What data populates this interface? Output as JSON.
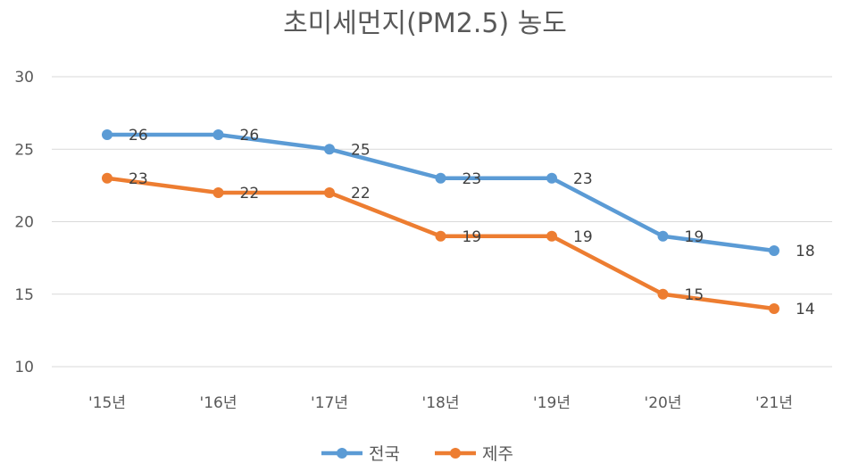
{
  "chart_data": {
    "type": "line",
    "title": "초미세먼지(PM2.5) 농도",
    "categories": [
      "'15년",
      "'16년",
      "'17년",
      "'18년",
      "'19년",
      "'20년",
      "'21년"
    ],
    "series": [
      {
        "name": "전국",
        "color": "#5b9bd5",
        "values": [
          26,
          26,
          25,
          23,
          23,
          19,
          18
        ]
      },
      {
        "name": "제주",
        "color": "#ed7d31",
        "values": [
          23,
          22,
          22,
          19,
          19,
          15,
          14
        ]
      }
    ],
    "ylim": [
      10,
      30
    ],
    "yticks": [
      10,
      15,
      20,
      25,
      30
    ],
    "grid": true,
    "legend_position": "bottom",
    "data_labels": true
  }
}
